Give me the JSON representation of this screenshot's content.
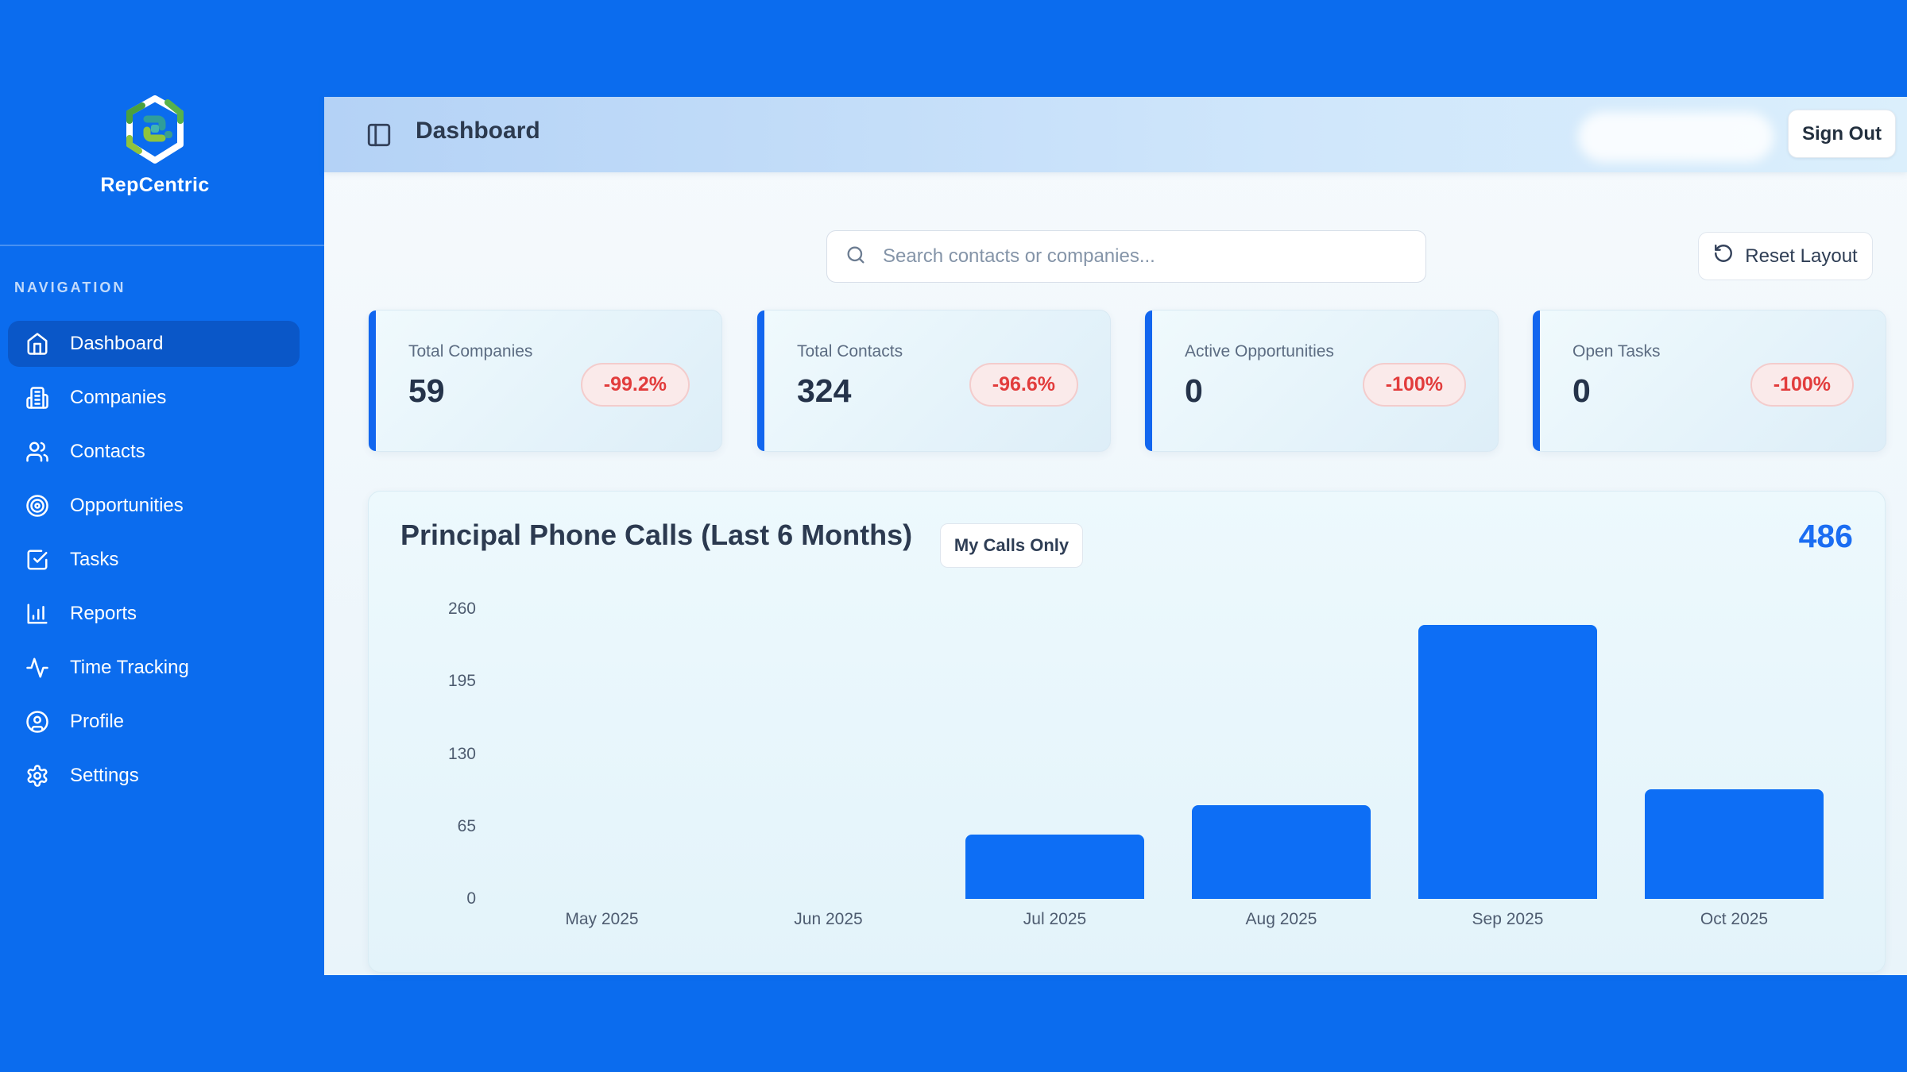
{
  "brand": {
    "name": "RepCentric"
  },
  "sidebar": {
    "section_label": "NAVIGATION",
    "items": [
      {
        "label": "Dashboard",
        "icon": "home-icon",
        "active": true
      },
      {
        "label": "Companies",
        "icon": "building-icon",
        "active": false
      },
      {
        "label": "Contacts",
        "icon": "users-icon",
        "active": false
      },
      {
        "label": "Opportunities",
        "icon": "target-icon",
        "active": false
      },
      {
        "label": "Tasks",
        "icon": "check-square-icon",
        "active": false
      },
      {
        "label": "Reports",
        "icon": "bar-chart-icon",
        "active": false
      },
      {
        "label": "Time Tracking",
        "icon": "activity-icon",
        "active": false
      },
      {
        "label": "Profile",
        "icon": "user-circle-icon",
        "active": false
      },
      {
        "label": "Settings",
        "icon": "gear-icon",
        "active": false
      }
    ]
  },
  "header": {
    "title": "Dashboard",
    "sign_out_label": "Sign Out"
  },
  "toolbar": {
    "search_placeholder": "Search contacts or companies...",
    "reset_layout_label": "Reset Layout"
  },
  "stats": [
    {
      "label": "Total Companies",
      "value": "59",
      "change": "-99.2%"
    },
    {
      "label": "Total Contacts",
      "value": "324",
      "change": "-96.6%"
    },
    {
      "label": "Active Opportunities",
      "value": "0",
      "change": "-100%"
    },
    {
      "label": "Open Tasks",
      "value": "0",
      "change": "-100%"
    }
  ],
  "chart_card": {
    "title": "Principal Phone Calls (Last 6 Months)",
    "filter_button_label": "My Calls Only",
    "total": "486"
  },
  "chart_data": {
    "type": "bar",
    "title": "Principal Phone Calls (Last 6 Months)",
    "categories": [
      "May 2025",
      "Jun 2025",
      "Jul 2025",
      "Aug 2025",
      "Sep 2025",
      "Oct 2025"
    ],
    "values": [
      0,
      0,
      58,
      84,
      246,
      98
    ],
    "total": 486,
    "xlabel": "",
    "ylabel": "",
    "ylim": [
      0,
      260
    ],
    "yticks": [
      0,
      65,
      130,
      195,
      260
    ],
    "grid": false,
    "legend": false,
    "bar_color": "#0d6ef5"
  },
  "colors": {
    "sidebar_blue": "#0b6cee",
    "sidebar_active": "#0a57c8",
    "bar_blue": "#0d6ef5",
    "total_blue": "#1b6df2",
    "stat_accent_blue": "#1266ef",
    "badge_red_text": "#e23c3c",
    "badge_red_bg": "#faeaea",
    "badge_red_border": "#f3cccc"
  }
}
